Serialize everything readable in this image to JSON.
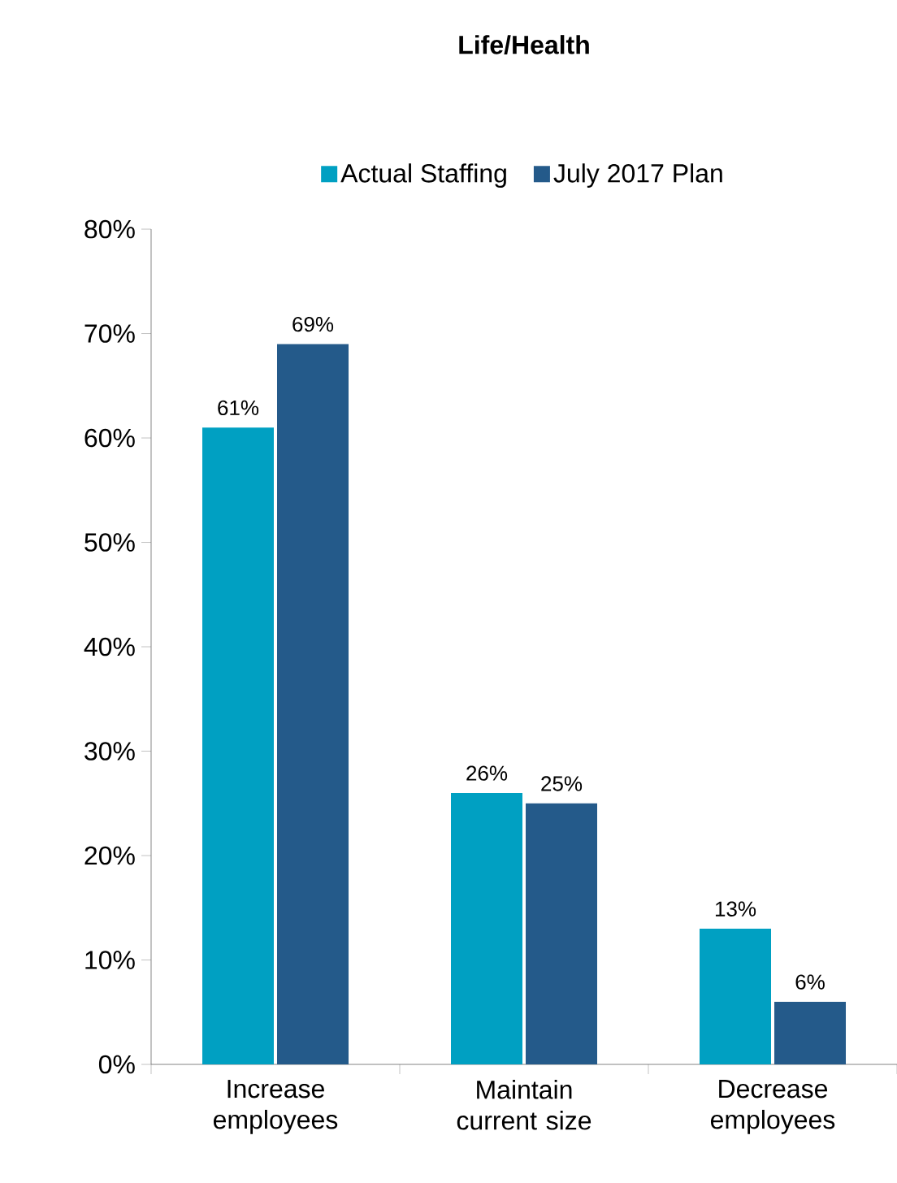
{
  "chart_data": {
    "type": "bar",
    "title": "Life/Health",
    "categories": [
      "Increase employees",
      "Maintain current size",
      "Decrease employees"
    ],
    "series": [
      {
        "name": "Actual Staffing",
        "color": "#00a0c2",
        "values": [
          61,
          26,
          13
        ],
        "value_labels": [
          "61%",
          "26%",
          "13%"
        ]
      },
      {
        "name": "July 2017 Plan",
        "color": "#245a8a",
        "values": [
          69,
          25,
          6
        ],
        "value_labels": [
          "69%",
          "25%",
          "6%"
        ]
      }
    ],
    "ylim": [
      0,
      80
    ],
    "yticks": [
      {
        "value": 0,
        "label": "0%"
      },
      {
        "value": 10,
        "label": "10%"
      },
      {
        "value": 20,
        "label": "20%"
      },
      {
        "value": 30,
        "label": "30%"
      },
      {
        "value": 40,
        "label": "40%"
      },
      {
        "value": 50,
        "label": "50%"
      },
      {
        "value": 60,
        "label": "60%"
      },
      {
        "value": 70,
        "label": "70%"
      },
      {
        "value": 80,
        "label": "80%"
      }
    ],
    "legend": "top",
    "grid": false
  }
}
